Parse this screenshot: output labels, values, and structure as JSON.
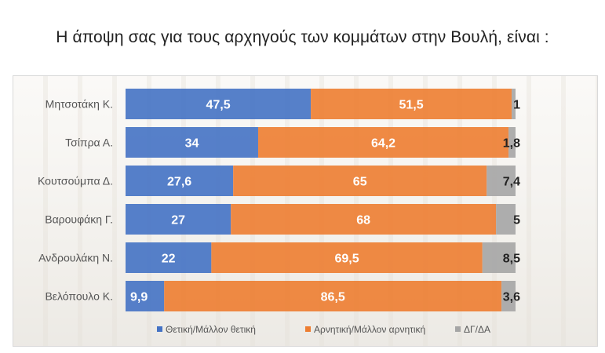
{
  "chart_data": {
    "type": "bar",
    "orientation": "horizontal",
    "stacked": true,
    "title": "Η άποψη σας για τους αρχηγούς των κομμάτων στην Βουλή,  είναι :",
    "xlim": [
      0,
      100
    ],
    "categories": [
      "Μητσοτάκη Κ.",
      "Τσίπρα Α.",
      "Κουτσούμπα Δ.",
      "Βαρουφάκη Γ.",
      "Ανδρουλάκη Ν.",
      "Βελόπουλο Κ."
    ],
    "series": [
      {
        "name": "Θετική/Μάλλον θετική",
        "color": "#4472c4",
        "label_color": "#ffffff",
        "values": [
          47.5,
          34,
          27.6,
          27,
          22,
          9.9
        ],
        "labels": [
          "47,5",
          "34",
          "27,6",
          "27",
          "22",
          "9,9"
        ]
      },
      {
        "name": "Αρνητική/Μάλλον αρνητική",
        "color": "#ed7d31",
        "label_color": "#ffffff",
        "values": [
          51.5,
          64.2,
          65,
          68,
          69.5,
          86.5
        ],
        "labels": [
          "51,5",
          "64,2",
          "65",
          "68",
          "69,5",
          "86,5"
        ]
      },
      {
        "name": "ΔΓ/ΔΑ",
        "color": "#a5a5a5",
        "label_color": "#222222",
        "values": [
          1,
          1.8,
          7.4,
          5,
          8.5,
          3.6
        ],
        "labels": [
          "1",
          "1,8",
          "7,4",
          "5",
          "8,5",
          "3,6"
        ]
      }
    ],
    "legend_position": "bottom"
  }
}
